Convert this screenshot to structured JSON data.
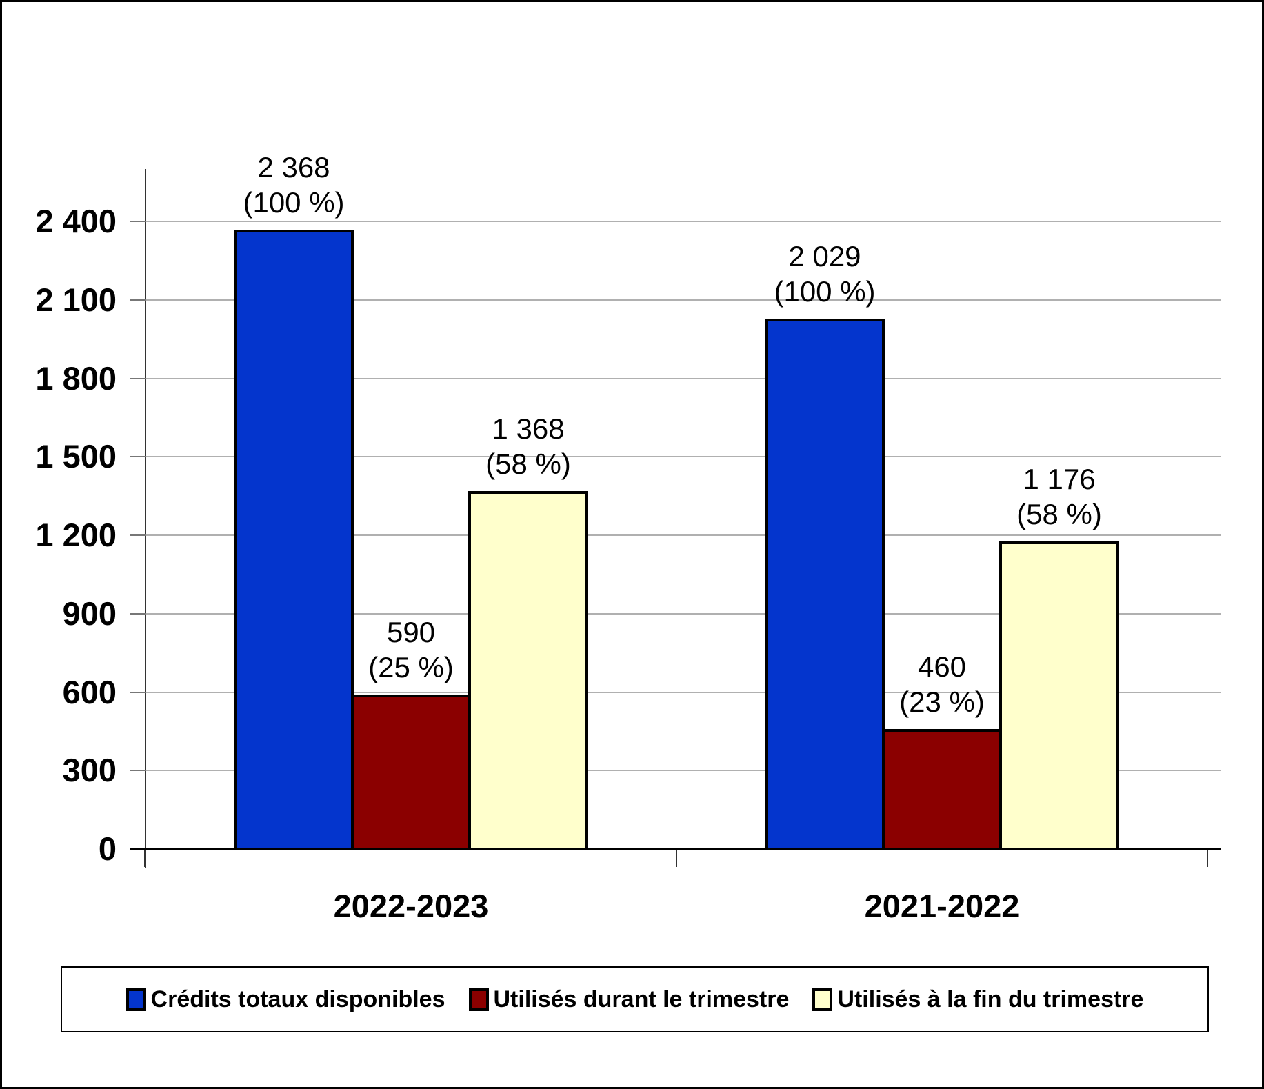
{
  "chart_data": {
    "type": "bar",
    "title": "",
    "xlabel": "",
    "ylabel": "",
    "categories": [
      "2022-2023",
      "2021-2022"
    ],
    "series": [
      {
        "name": "Crédits totaux disponibles",
        "color": "#0435cd",
        "values": [
          2368,
          2029
        ],
        "data_labels": [
          [
            "2 368",
            "(100 %)"
          ],
          [
            "2 029",
            "(100 %)"
          ]
        ]
      },
      {
        "name": "Utilisés durant le trimestre",
        "color": "#8b0000",
        "values": [
          590,
          460
        ],
        "data_labels": [
          [
            "590",
            "(25 %)"
          ],
          [
            "460",
            "(23 %)"
          ]
        ]
      },
      {
        "name": "Utilisés à la fin du trimestre",
        "color": "#ffffcc",
        "values": [
          1368,
          1176
        ],
        "data_labels": [
          [
            "1 368",
            "(58 %)"
          ],
          [
            "1 176",
            "(58 %)"
          ]
        ]
      }
    ],
    "ylim": [
      0,
      2400
    ],
    "ytick_step": 300,
    "ytick_labels": [
      "0",
      "300",
      "600",
      "900",
      "1 200",
      "1 500",
      "1 800",
      "2 100",
      "2 400"
    ],
    "grid": true,
    "legend_position": "bottom"
  }
}
